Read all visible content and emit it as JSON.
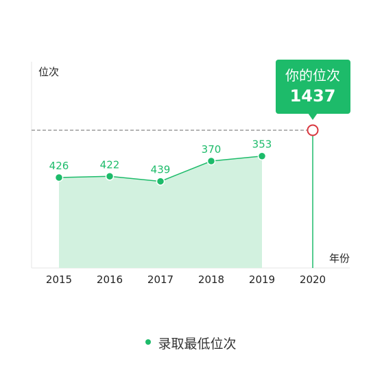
{
  "chart_data": {
    "type": "area",
    "x": [
      "2015",
      "2016",
      "2017",
      "2018",
      "2019"
    ],
    "y_label": "位次",
    "x_label": "年份",
    "series": [
      {
        "name": "录取最低位次",
        "values": [
          426,
          422,
          439,
          370,
          353
        ]
      }
    ],
    "prediction": {
      "year": "2020",
      "title": "你的位次",
      "value": 1437
    },
    "legend_position": "bottom",
    "grid": false
  },
  "colors": {
    "accent": "#1dbb6a",
    "area_fill": "#d2f1df",
    "marker_ring": "#d9363e",
    "dashed_line": "#888888"
  }
}
